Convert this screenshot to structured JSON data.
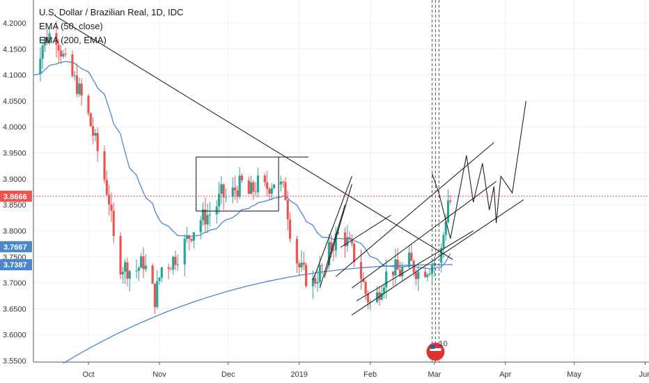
{
  "chart_data": {
    "type": "candlestick",
    "title": "U.S. Dollar / Brazilian Real, 1D, IDC",
    "indicators": [
      {
        "label": "EMA (50, close)",
        "color": "#4a86c8"
      },
      {
        "label": "EMA (200, EMA)",
        "color": "#4a86c8"
      }
    ],
    "ylim": [
      3.55,
      4.23
    ],
    "y_ticks": [
      "4.2000",
      "4.1500",
      "4.1000",
      "4.0500",
      "4.0000",
      "3.9500",
      "3.9000",
      "3.8500",
      "3.8000",
      "3.7500",
      "3.7000",
      "3.6500",
      "3.6000",
      "3.5500"
    ],
    "x_ticks": [
      "Oct",
      "Nov",
      "Dec",
      "2019",
      "Feb",
      "Mar",
      "Apr",
      "May",
      "Jun"
    ],
    "price_labels": [
      {
        "text": "3.8666",
        "value": 3.8666,
        "color": "#ef5350",
        "line": "dotted"
      },
      {
        "text": "3.7667",
        "value": 3.7667,
        "color": "#4a86c8"
      },
      {
        "text": "3.7387",
        "value": 3.7387,
        "color": "#4a86c8"
      }
    ],
    "colors": {
      "up": "#26a69a",
      "down": "#ef5350",
      "ema": "#4a86c8",
      "drawing": "#222222",
      "grid": "#eef0f3",
      "axis": "#555555"
    },
    "event_marker": {
      "label": "10"
    },
    "note": "candles approximate daily OHLC; hand-drawn trendlines, channels and rectangle overlay"
  }
}
